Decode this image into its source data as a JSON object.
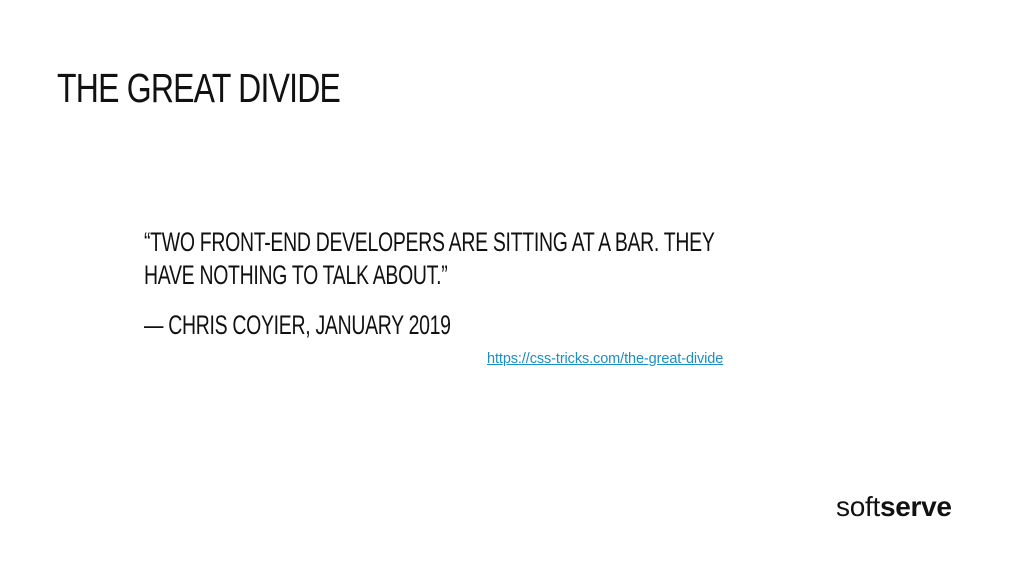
{
  "slide": {
    "title": "THE GREAT DIVIDE",
    "quote_line_1": "“TWO FRONT-END DEVELOPERS ARE SITTING AT A BAR. THEY",
    "quote_line_2": "HAVE NOTHING TO TALK ABOUT.”",
    "attribution": "— CHRIS COYIER, JANUARY 2019",
    "link_text": "https://css-tricks.com/the-great-divide",
    "logo": {
      "part_1": "soft",
      "part_2": "serve"
    }
  },
  "colors": {
    "text": "#111111",
    "link": "#1a8fc4",
    "background": "#ffffff"
  }
}
